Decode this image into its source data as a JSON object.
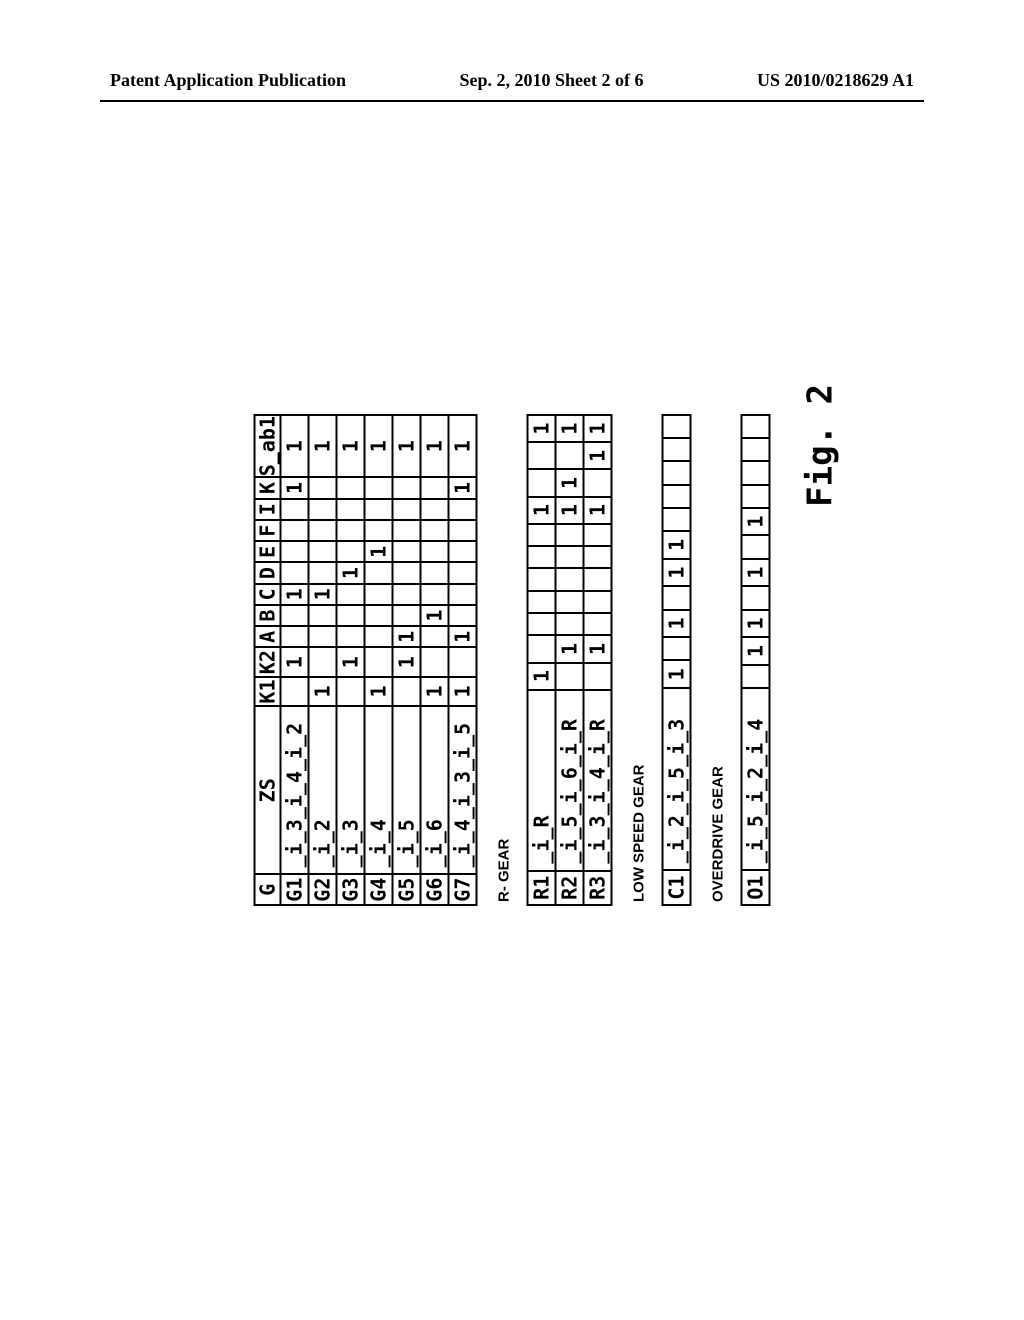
{
  "header": {
    "left": "Patent Application Publication",
    "center": "Sep. 2, 2010  Sheet 2 of 6",
    "right": "US 2010/0218629 A1"
  },
  "columns": [
    "G",
    "ZS",
    "K1",
    "K2",
    "A",
    "B",
    "C",
    "D",
    "E",
    "F",
    "I",
    "K",
    "S_ab1"
  ],
  "forward": {
    "rows": [
      {
        "g": "G1",
        "zs": "_i_3_i_4_i_2",
        "k1": "",
        "k2": "1",
        "a": "",
        "b": "",
        "c": "1",
        "d": "",
        "e": "",
        "f": "",
        "i": "",
        "k": "1",
        "s": "1"
      },
      {
        "g": "G2",
        "zs": "_i_2",
        "k1": "1",
        "k2": "",
        "a": "",
        "b": "",
        "c": "1",
        "d": "",
        "e": "",
        "f": "",
        "i": "",
        "k": "",
        "s": "1"
      },
      {
        "g": "G3",
        "zs": "_i_3",
        "k1": "",
        "k2": "1",
        "a": "",
        "b": "",
        "c": "",
        "d": "1",
        "e": "",
        "f": "",
        "i": "",
        "k": "",
        "s": "1"
      },
      {
        "g": "G4",
        "zs": "_i_4",
        "k1": "1",
        "k2": "",
        "a": "",
        "b": "",
        "c": "",
        "d": "",
        "e": "1",
        "f": "",
        "i": "",
        "k": "",
        "s": "1"
      },
      {
        "g": "G5",
        "zs": "_i_5",
        "k1": "",
        "k2": "1",
        "a": "1",
        "b": "",
        "c": "",
        "d": "",
        "e": "",
        "f": "",
        "i": "",
        "k": "",
        "s": "1"
      },
      {
        "g": "G6",
        "zs": "_i_6",
        "k1": "1",
        "k2": "",
        "a": "",
        "b": "1",
        "c": "",
        "d": "",
        "e": "",
        "f": "",
        "i": "",
        "k": "",
        "s": "1"
      },
      {
        "g": "G7",
        "zs": "_i_4_i_3_i_5",
        "k1": "1",
        "k2": "",
        "a": "1",
        "b": "",
        "c": "",
        "d": "",
        "e": "",
        "f": "",
        "i": "",
        "k": "1",
        "s": "1"
      }
    ]
  },
  "reverse": {
    "label": "R- GEAR",
    "rows": [
      {
        "g": "R1",
        "zs": "_i_R",
        "k1": "1",
        "k2": "",
        "a": "",
        "b": "",
        "c": "",
        "d": "",
        "e": "",
        "f": "1",
        "i": "",
        "k": "",
        "s": "1"
      },
      {
        "g": "R2",
        "zs": "_i_5_i_6_i_R",
        "k1": "",
        "k2": "1",
        "a": "",
        "b": "",
        "c": "",
        "d": "",
        "e": "",
        "f": "1",
        "i": "1",
        "k": "",
        "s": "1"
      },
      {
        "g": "R3",
        "zs": "_i_3_i_4_i_R",
        "k1": "",
        "k2": "1",
        "a": "",
        "b": "",
        "c": "",
        "d": "",
        "e": "",
        "f": "1",
        "i": "",
        "k": "1",
        "s": "1"
      }
    ]
  },
  "lowspeed": {
    "label": "LOW SPEED GEAR",
    "rows": [
      {
        "g": "C1",
        "zs": "_i_2_i_5_i_3",
        "k1": "1",
        "k2": "",
        "a": "1",
        "b": "",
        "c": "1",
        "d": "1",
        "e": "",
        "f": "",
        "i": "",
        "k": "",
        "s": ""
      }
    ]
  },
  "overdrive": {
    "label": "OVERDRIVE GEAR",
    "rows": [
      {
        "g": "O1",
        "zs": "_i_5_i_2_i_4",
        "k1": "",
        "k2": "1",
        "a": "1",
        "b": "",
        "c": "1",
        "d": "",
        "e": "1",
        "f": "",
        "i": "",
        "k": "",
        "s": ""
      }
    ]
  },
  "fig_label": "Fig. 2"
}
